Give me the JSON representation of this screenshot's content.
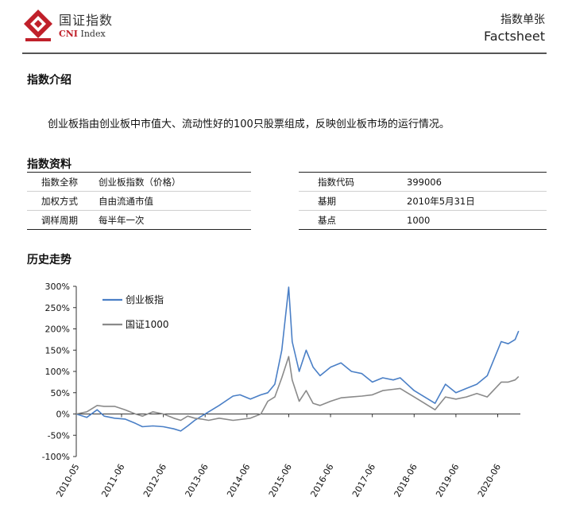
{
  "header": {
    "brand_cn": "国证指数",
    "brand_en_prefix": "CNI",
    "brand_en_suffix": "Index",
    "doc_title": "指数单张",
    "doc_subtitle": "Factsheet",
    "colors": {
      "logo_red": "#c0202a"
    }
  },
  "sections": {
    "intro_title": "指数介绍",
    "info_title": "指数资料",
    "history_title": "历史走势"
  },
  "intro": {
    "text": "创业板指由创业板中市值大、流动性好的100只股票组成，反映创业板市场的运行情况。"
  },
  "info": {
    "left": [
      {
        "key": "指数全称",
        "value": "创业板指数（价格）"
      },
      {
        "key": "加权方式",
        "value": "自由流通市值"
      },
      {
        "key": "调样周期",
        "value": "每半年一次"
      }
    ],
    "right": [
      {
        "key": "指数代码",
        "value": "399006"
      },
      {
        "key": "基期",
        "value": "2010年5月31日"
      },
      {
        "key": "基点",
        "value": "1000"
      }
    ]
  },
  "chart_data": {
    "type": "line",
    "title": "",
    "xlabel": "",
    "ylabel": "",
    "ylim": [
      -100,
      300
    ],
    "y_ticks": [
      "-100%",
      "-50%",
      "0%",
      "50%",
      "100%",
      "150%",
      "200%",
      "250%",
      "300%"
    ],
    "x_ticks": [
      "2010-05",
      "2011-06",
      "2012-06",
      "2013-06",
      "2014-06",
      "2015-06",
      "2016-06",
      "2017-06",
      "2018-06",
      "2019-06",
      "2020-06"
    ],
    "legend_position": "top-left",
    "grid": false,
    "series": [
      {
        "name": "创业板指",
        "color": "#4a7fc6",
        "points": [
          [
            "2010-05",
            0
          ],
          [
            "2010-08",
            -8
          ],
          [
            "2010-11",
            10
          ],
          [
            "2011-01",
            -5
          ],
          [
            "2011-04",
            -10
          ],
          [
            "2011-07",
            -12
          ],
          [
            "2011-10",
            -22
          ],
          [
            "2011-12",
            -30
          ],
          [
            "2012-03",
            -28
          ],
          [
            "2012-06",
            -30
          ],
          [
            "2012-09",
            -35
          ],
          [
            "2012-11",
            -40
          ],
          [
            "2013-01",
            -28
          ],
          [
            "2013-03",
            -15
          ],
          [
            "2013-05",
            -5
          ],
          [
            "2013-07",
            5
          ],
          [
            "2013-10",
            20
          ],
          [
            "2014-02",
            42
          ],
          [
            "2014-04",
            45
          ],
          [
            "2014-07",
            35
          ],
          [
            "2014-10",
            45
          ],
          [
            "2014-12",
            50
          ],
          [
            "2015-02",
            70
          ],
          [
            "2015-04",
            150
          ],
          [
            "2015-06",
            298
          ],
          [
            "2015-07",
            170
          ],
          [
            "2015-09",
            100
          ],
          [
            "2015-11",
            150
          ],
          [
            "2016-01",
            110
          ],
          [
            "2016-03",
            90
          ],
          [
            "2016-06",
            110
          ],
          [
            "2016-09",
            120
          ],
          [
            "2016-12",
            100
          ],
          [
            "2017-03",
            95
          ],
          [
            "2017-06",
            75
          ],
          [
            "2017-09",
            85
          ],
          [
            "2017-12",
            80
          ],
          [
            "2018-02",
            85
          ],
          [
            "2018-06",
            55
          ],
          [
            "2018-09",
            40
          ],
          [
            "2018-12",
            25
          ],
          [
            "2019-03",
            70
          ],
          [
            "2019-06",
            50
          ],
          [
            "2019-09",
            60
          ],
          [
            "2019-12",
            70
          ],
          [
            "2020-03",
            90
          ],
          [
            "2020-07",
            170
          ],
          [
            "2020-09",
            165
          ],
          [
            "2020-11",
            175
          ],
          [
            "2020-12",
            195
          ]
        ]
      },
      {
        "name": "国证1000",
        "color": "#8a8a8a",
        "points": [
          [
            "2010-05",
            0
          ],
          [
            "2010-08",
            5
          ],
          [
            "2010-11",
            20
          ],
          [
            "2011-01",
            18
          ],
          [
            "2011-04",
            18
          ],
          [
            "2011-07",
            10
          ],
          [
            "2011-10",
            0
          ],
          [
            "2011-12",
            -5
          ],
          [
            "2012-03",
            5
          ],
          [
            "2012-06",
            0
          ],
          [
            "2012-09",
            -10
          ],
          [
            "2012-11",
            -15
          ],
          [
            "2013-01",
            -5
          ],
          [
            "2013-03",
            -10
          ],
          [
            "2013-05",
            -12
          ],
          [
            "2013-07",
            -15
          ],
          [
            "2013-10",
            -10
          ],
          [
            "2014-02",
            -15
          ],
          [
            "2014-04",
            -13
          ],
          [
            "2014-07",
            -10
          ],
          [
            "2014-10",
            0
          ],
          [
            "2014-12",
            30
          ],
          [
            "2015-02",
            40
          ],
          [
            "2015-04",
            85
          ],
          [
            "2015-06",
            135
          ],
          [
            "2015-07",
            80
          ],
          [
            "2015-09",
            30
          ],
          [
            "2015-11",
            55
          ],
          [
            "2016-01",
            25
          ],
          [
            "2016-03",
            20
          ],
          [
            "2016-06",
            30
          ],
          [
            "2016-09",
            38
          ],
          [
            "2016-12",
            40
          ],
          [
            "2017-03",
            42
          ],
          [
            "2017-06",
            45
          ],
          [
            "2017-09",
            55
          ],
          [
            "2017-12",
            58
          ],
          [
            "2018-02",
            60
          ],
          [
            "2018-06",
            40
          ],
          [
            "2018-09",
            25
          ],
          [
            "2018-12",
            10
          ],
          [
            "2019-03",
            40
          ],
          [
            "2019-06",
            35
          ],
          [
            "2019-09",
            40
          ],
          [
            "2019-12",
            48
          ],
          [
            "2020-03",
            40
          ],
          [
            "2020-07",
            75
          ],
          [
            "2020-09",
            75
          ],
          [
            "2020-11",
            80
          ],
          [
            "2020-12",
            88
          ]
        ]
      }
    ]
  }
}
